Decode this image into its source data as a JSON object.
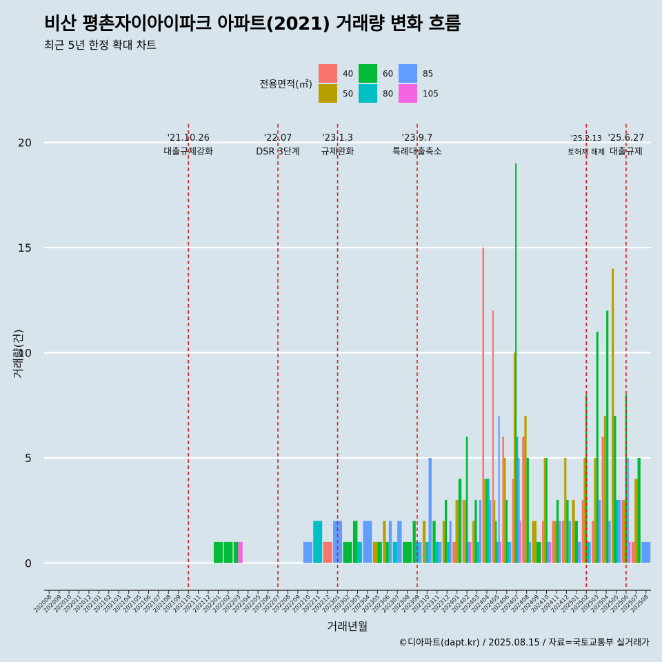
{
  "header": {
    "title": "비산 평촌자이아이파크 아파트(2021) 거래량 변화 흐름",
    "subtitle": "최근 5년 한정 확대 차트"
  },
  "caption": "©디아파트(dapt.kr) / 2025.08.15 / 자료=국토교통부 실거래가",
  "chart_data": {
    "type": "bar",
    "xlabel": "거래년월",
    "ylabel": "거래량(건)",
    "ylim": [
      -1.3,
      21.2
    ],
    "yticks": [
      0,
      5,
      10,
      15,
      20
    ],
    "grid": true,
    "legend": {
      "title": "전용면적(㎡)",
      "placement": "top"
    },
    "categories": [
      "202008",
      "202009",
      "202010",
      "202011",
      "202012",
      "202101",
      "202102",
      "202103",
      "202104",
      "202105",
      "202106",
      "202107",
      "202108",
      "202109",
      "202110",
      "202111",
      "202112",
      "202201",
      "202202",
      "202203",
      "202204",
      "202205",
      "202206",
      "202207",
      "202208",
      "202209",
      "202210",
      "202211",
      "202212",
      "202301",
      "202302",
      "202303",
      "202304",
      "202305",
      "202306",
      "202307",
      "202308",
      "202309",
      "202310",
      "202311",
      "202312",
      "202401",
      "202402",
      "202403",
      "202404",
      "202405",
      "202406",
      "202407",
      "202408",
      "202409",
      "202410",
      "202411",
      "202412",
      "202501",
      "202502",
      "202503",
      "202504",
      "202505",
      "202506",
      "202507",
      "202508"
    ],
    "series": [
      {
        "name": "40",
        "color": "#f8766d",
        "values": [
          null,
          null,
          null,
          null,
          null,
          null,
          null,
          null,
          null,
          null,
          null,
          null,
          null,
          null,
          null,
          null,
          null,
          null,
          null,
          null,
          null,
          null,
          null,
          null,
          null,
          null,
          null,
          null,
          1,
          null,
          null,
          null,
          null,
          null,
          null,
          null,
          null,
          null,
          null,
          null,
          null,
          1,
          3,
          null,
          15,
          12,
          6,
          4,
          6,
          null,
          2,
          2,
          2,
          null,
          3,
          2,
          6,
          null,
          3,
          1,
          null
        ]
      },
      {
        "name": "50",
        "color": "#b79f00",
        "values": [
          null,
          null,
          null,
          null,
          null,
          null,
          null,
          null,
          null,
          null,
          null,
          null,
          null,
          null,
          null,
          null,
          null,
          null,
          null,
          null,
          null,
          null,
          null,
          null,
          null,
          null,
          null,
          null,
          null,
          null,
          null,
          null,
          null,
          1,
          2,
          null,
          null,
          null,
          2,
          null,
          2,
          3,
          3,
          2,
          4,
          3,
          5,
          10,
          7,
          2,
          5,
          2,
          5,
          3,
          5,
          5,
          7,
          14,
          3,
          4,
          null
        ]
      },
      {
        "name": "60",
        "color": "#00ba38",
        "values": [
          null,
          null,
          null,
          null,
          null,
          null,
          null,
          null,
          null,
          null,
          null,
          null,
          null,
          null,
          null,
          null,
          null,
          1,
          1,
          1,
          null,
          null,
          null,
          null,
          null,
          null,
          null,
          null,
          null,
          null,
          1,
          2,
          null,
          1,
          1,
          null,
          1,
          2,
          null,
          2,
          3,
          4,
          6,
          3,
          4,
          2,
          3,
          19,
          5,
          1,
          5,
          3,
          3,
          2,
          8,
          11,
          12,
          7,
          8,
          5,
          null
        ]
      },
      {
        "name": "80",
        "color": "#00bfc4",
        "values": [
          null,
          null,
          null,
          null,
          null,
          null,
          null,
          null,
          null,
          null,
          null,
          null,
          null,
          null,
          null,
          null,
          null,
          null,
          null,
          null,
          null,
          null,
          null,
          null,
          null,
          null,
          null,
          2,
          null,
          null,
          null,
          1,
          null,
          null,
          null,
          1,
          null,
          1,
          1,
          1,
          1,
          null,
          null,
          1,
          4,
          1,
          1,
          6,
          null,
          null,
          null,
          null,
          null,
          null,
          1,
          null,
          null,
          3,
          null,
          null,
          null
        ]
      },
      {
        "name": "85",
        "color": "#619cff",
        "values": [
          null,
          null,
          null,
          null,
          null,
          null,
          null,
          null,
          null,
          null,
          null,
          null,
          null,
          null,
          null,
          null,
          null,
          null,
          null,
          null,
          null,
          null,
          null,
          null,
          null,
          null,
          1,
          null,
          null,
          2,
          null,
          null,
          2,
          null,
          2,
          2,
          null,
          1,
          5,
          1,
          2,
          null,
          1,
          3,
          3,
          7,
          1,
          5,
          1,
          null,
          1,
          2,
          2,
          1,
          1,
          3,
          2,
          3,
          5,
          null,
          1
        ]
      },
      {
        "name": "105",
        "color": "#f564e3",
        "values": [
          null,
          null,
          null,
          null,
          null,
          null,
          null,
          null,
          null,
          null,
          null,
          null,
          null,
          null,
          null,
          null,
          null,
          null,
          null,
          1,
          null,
          null,
          null,
          null,
          null,
          null,
          null,
          null,
          null,
          null,
          null,
          null,
          null,
          null,
          null,
          null,
          null,
          null,
          null,
          null,
          null,
          null,
          1,
          null,
          null,
          1,
          null,
          2,
          null,
          null,
          1,
          null,
          null,
          null,
          null,
          null,
          null,
          null,
          1,
          null,
          null
        ]
      }
    ],
    "annotations": [
      {
        "date": "'21.10.26",
        "label": "대출규제강화",
        "category": "202110"
      },
      {
        "date": "'22.07",
        "label": "DSR 3단계",
        "category": "202207"
      },
      {
        "date": "'23.1.3",
        "label": "규제완화",
        "category": "202301"
      },
      {
        "date": "'23.9.7",
        "label": "특례대출축소",
        "category": "202309"
      },
      {
        "date": "'25.2.13",
        "label": "토허제 해제",
        "category": "202502"
      },
      {
        "date": "'25.6.27",
        "label": "대출규제",
        "category": "202506"
      }
    ]
  }
}
